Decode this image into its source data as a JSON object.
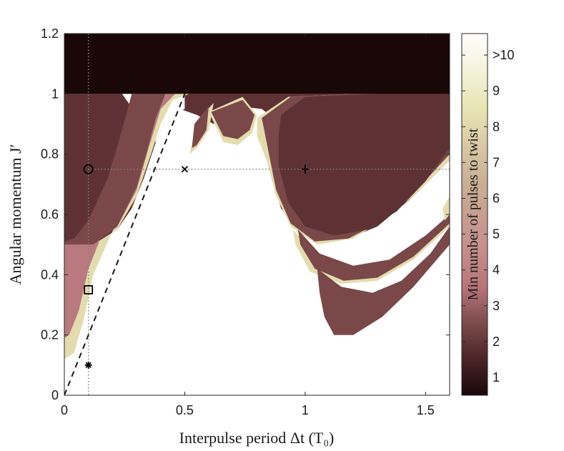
{
  "chart_data": {
    "type": "heatmap",
    "xlabel": "Interpulse period Δt (T₀)",
    "ylabel": "Angular momentum J′",
    "xlim": [
      0,
      1.6
    ],
    "ylim": [
      0,
      1.2
    ],
    "xticks": [
      0,
      0.5,
      1,
      1.5
    ],
    "xtick_labels": [
      "0",
      "0.5",
      "1",
      "1.5"
    ],
    "yticks": [
      0,
      0.2,
      0.4,
      0.6,
      0.8,
      1,
      1.2
    ],
    "ytick_labels": [
      "0",
      "0.2",
      "0.4",
      "0.6",
      "0.8",
      "1",
      "1.2"
    ],
    "colorbar": {
      "label": "Min number of pulses to twist",
      "range": [
        0.5,
        10.6
      ],
      "ticks": [
        1,
        2,
        3,
        4,
        5,
        6,
        7,
        8,
        9,
        10
      ],
      "tick_labels": [
        "1",
        "2",
        "3",
        "4",
        "5",
        "6",
        "7",
        "8",
        "9",
        ">10"
      ],
      "stops": [
        {
          "value": 0.5,
          "color": "#1a0708"
        },
        {
          "value": 1.5,
          "color": "#4a2426"
        },
        {
          "value": 2.5,
          "color": "#7b4a4b"
        },
        {
          "value": 3.5,
          "color": "#b77479"
        },
        {
          "value": 4.5,
          "color": "#c48d8b"
        },
        {
          "value": 6.5,
          "color": "#c9b095"
        },
        {
          "value": 8.5,
          "color": "#e8e4b4"
        },
        {
          "value": 10.6,
          "color": "#ffffff"
        }
      ]
    },
    "regions": {
      "top_band": {
        "y_min": 1.0,
        "y_max": 1.2,
        "value": 1,
        "color": "#1a0708"
      },
      "main_region_value": 2,
      "main_region_color": "#5e3234",
      "boundary_color": "#7a4849",
      "edge_color_light": "#b87a7e",
      "edge_color_pale": "#e3dcae",
      "untwisted_color": "#ffffff"
    },
    "dashed_line": {
      "points": [
        [
          0,
          0
        ],
        [
          0.5,
          1.0
        ]
      ]
    },
    "reference_lines": {
      "vertical_x": 0.1,
      "horizontal_y": 0.75,
      "horizontal_x_end": 1.6
    },
    "markers": [
      {
        "symbol": "circle",
        "x": 0.1,
        "y": 0.75
      },
      {
        "symbol": "square",
        "x": 0.1,
        "y": 0.35
      },
      {
        "symbol": "asterisk",
        "x": 0.1,
        "y": 0.1
      },
      {
        "symbol": "cross",
        "x": 0.5,
        "y": 0.75
      },
      {
        "symbol": "plus",
        "x": 1.0,
        "y": 0.75
      }
    ]
  }
}
